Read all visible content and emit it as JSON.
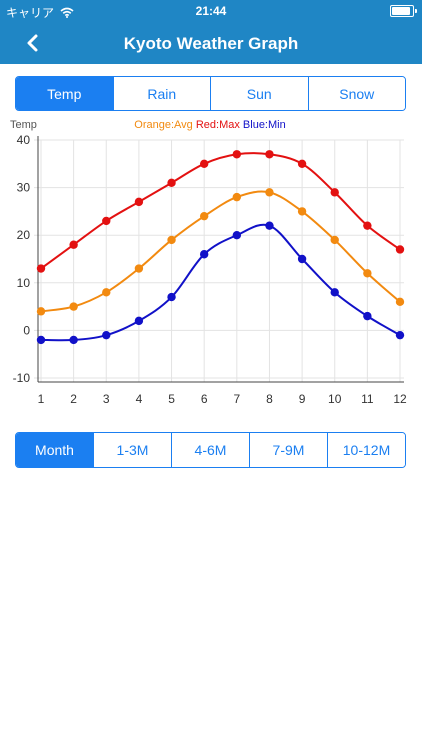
{
  "status_bar": {
    "carrier": "キャリア",
    "time": "21:44",
    "battery_level": 1.0
  },
  "nav": {
    "title": "Kyoto Weather Graph"
  },
  "top_tabs": [
    "Temp",
    "Rain",
    "Sun",
    "Snow"
  ],
  "top_tabs_selected": 0,
  "bottom_tabs": [
    "Month",
    "1-3M",
    "4-6M",
    "7-9M",
    "10-12M"
  ],
  "bottom_tabs_selected": 0,
  "colors": {
    "header": "#1f86c5",
    "accent": "#1b7ff1",
    "avg": "#f28a10",
    "max": "#e31111",
    "min": "#1111c8"
  },
  "chart_data": {
    "type": "line",
    "ylabel": "Temp",
    "legend": {
      "avg": "Orange:Avg",
      "max": "Red:Max",
      "min": "Blue:Min",
      "position": "top-center"
    },
    "x": [
      1,
      2,
      3,
      4,
      5,
      6,
      7,
      8,
      9,
      10,
      11,
      12
    ],
    "ylim": [
      -10,
      40
    ],
    "yticks": [
      -10,
      0,
      10,
      20,
      30,
      40
    ],
    "grid": true,
    "series": [
      {
        "name": "Red:Max",
        "color": "#e31111",
        "values": [
          13,
          18,
          23,
          27,
          31,
          35,
          37,
          37,
          35,
          29,
          22,
          17
        ]
      },
      {
        "name": "Orange:Avg",
        "color": "#f28a10",
        "values": [
          4,
          5,
          8,
          13,
          19,
          24,
          28,
          29,
          25,
          19,
          12,
          6
        ]
      },
      {
        "name": "Blue:Min",
        "color": "#1111c8",
        "values": [
          -2,
          -2,
          -1,
          2,
          7,
          16,
          20,
          22,
          15,
          8,
          3,
          -1
        ]
      }
    ]
  }
}
